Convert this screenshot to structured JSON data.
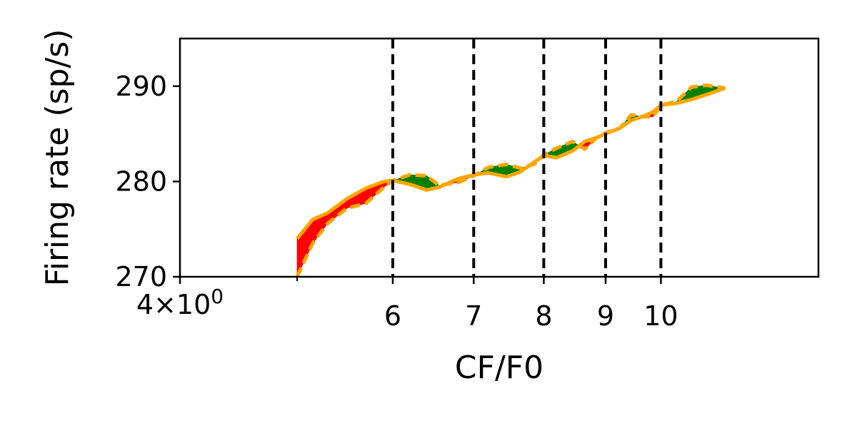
{
  "chart_data": {
    "type": "line",
    "title": "",
    "xlabel": "CF/F0",
    "ylabel": "Firing rate (sp/s)",
    "xscale": "log",
    "xlim": [
      4.0,
      13.5
    ],
    "ylim": [
      270,
      295
    ],
    "grid": false,
    "x_tick_labels": [
      {
        "value": 4.0,
        "base": "4",
        "sep": "×",
        "pow_base": "10",
        "exp": "0"
      },
      {
        "value": 6,
        "label": "6"
      },
      {
        "value": 7,
        "label": "7"
      },
      {
        "value": 8,
        "label": "8"
      },
      {
        "value": 9,
        "label": "9"
      },
      {
        "value": 10,
        "label": "10"
      }
    ],
    "x_unlabeled_ticks": [
      5
    ],
    "y_ticks": [
      270,
      280,
      290
    ],
    "vlines": [
      6,
      7,
      8,
      9,
      10
    ],
    "fill_colors": {
      "above": "#008000",
      "below": "#ff0000"
    },
    "series": [
      {
        "style": "solid",
        "color": "#ffa500",
        "x": [
          5.0,
          5.15,
          5.3,
          5.5,
          5.7,
          5.9,
          6.0,
          6.2,
          6.4,
          6.55,
          6.8,
          7.0,
          7.2,
          7.45,
          7.65,
          7.85,
          8.0,
          8.2,
          8.45,
          8.65,
          8.85,
          9.0,
          9.25,
          9.45,
          9.65,
          9.85,
          10.0,
          10.3,
          10.6,
          10.9,
          11.3
        ],
        "y": [
          274.0,
          276.0,
          276.7,
          278.2,
          279.3,
          280.0,
          280.1,
          279.7,
          279.1,
          279.4,
          280.3,
          280.7,
          280.9,
          280.5,
          281.0,
          282.0,
          282.7,
          282.5,
          283.2,
          284.2,
          284.6,
          285.0,
          285.6,
          286.4,
          286.8,
          287.3,
          288.0,
          288.2,
          288.6,
          289.1,
          289.8
        ]
      },
      {
        "style": "dashed",
        "color": "#ffa500",
        "x": [
          5.0,
          5.15,
          5.3,
          5.5,
          5.7,
          5.9,
          6.0,
          6.2,
          6.4,
          6.55,
          6.8,
          7.0,
          7.2,
          7.45,
          7.65,
          7.85,
          8.0,
          8.2,
          8.45,
          8.65,
          8.85,
          9.0,
          9.25,
          9.45,
          9.65,
          9.85,
          10.0,
          10.3,
          10.6,
          10.9,
          11.3
        ],
        "y": [
          270.0,
          273.5,
          275.6,
          277.2,
          277.7,
          279.4,
          280.1,
          280.7,
          280.6,
          279.6,
          279.9,
          280.6,
          281.5,
          281.8,
          281.4,
          281.8,
          282.8,
          283.5,
          284.2,
          283.4,
          284.6,
          285.1,
          285.6,
          287.0,
          286.8,
          286.8,
          288.0,
          288.4,
          289.9,
          290.1,
          289.8
        ]
      }
    ]
  }
}
